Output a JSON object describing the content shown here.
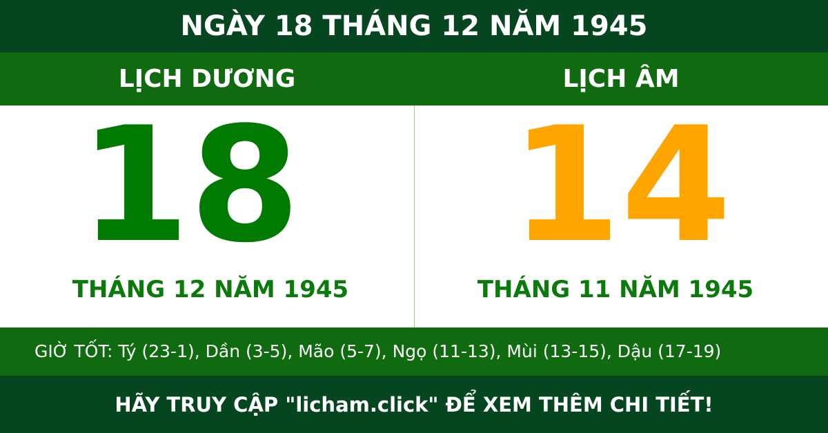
{
  "header": {
    "title": "NGÀY 18 THÁNG 12 NĂM 1945"
  },
  "solar": {
    "label": "LỊCH DƯƠNG",
    "day": "18",
    "month_year": "THÁNG 12 NĂM 1945",
    "color": "#007a00"
  },
  "lunar": {
    "label": "LỊCH ÂM",
    "day": "14",
    "month_year": "THÁNG 11 NĂM 1945",
    "color": "#ffa500"
  },
  "good_hours": "GIỜ TỐT: Tý (23-1), Dần (3-5), Mão (5-7), Ngọ (11-13), Mùi (13-15), Dậu (17-19)",
  "footer": {
    "text": "HÃY TRUY CẬP \"licham.click\" ĐỂ XEM THÊM CHI TIẾT!"
  }
}
